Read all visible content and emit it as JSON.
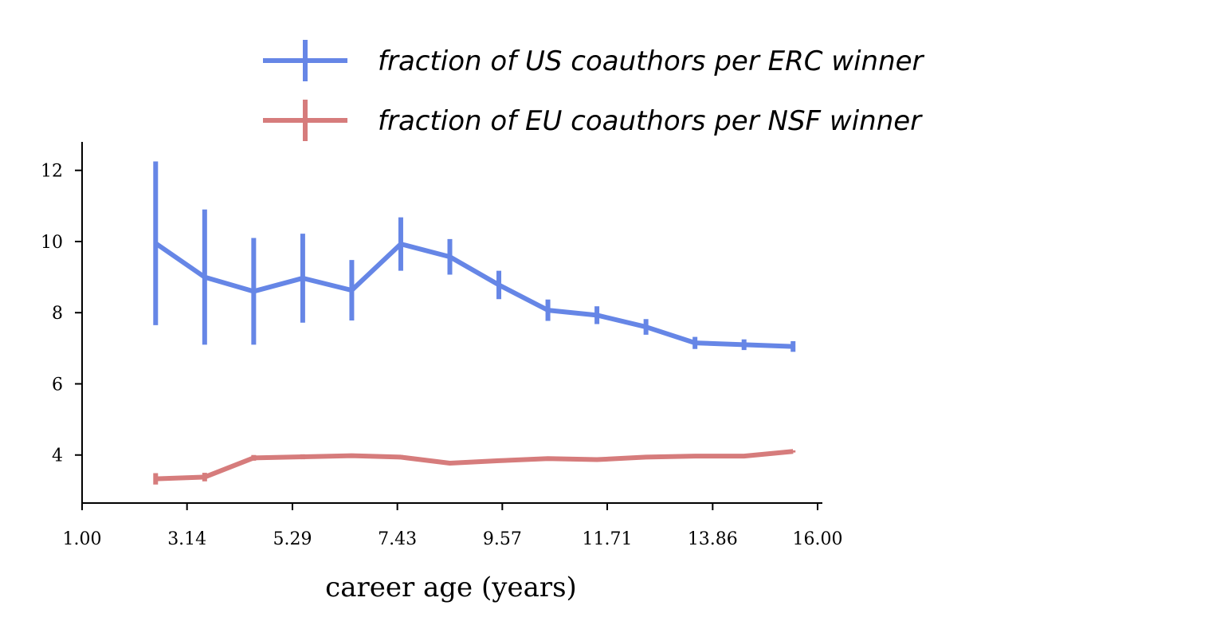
{
  "chart_data": {
    "type": "line",
    "xlabel": "career age (years)",
    "ylabel": "",
    "xlim": [
      1.0,
      16.0
    ],
    "ylim": [
      2.65,
      12.8
    ],
    "x_ticks": [
      "1.00",
      "3.14",
      "5.29",
      "7.43",
      "9.57",
      "11.71",
      "13.86",
      "16.00"
    ],
    "y_ticks": [
      "4",
      "6",
      "8",
      "10",
      "12"
    ],
    "legend_position": "top-right, above the plot",
    "grid": false,
    "series": [
      {
        "name": "fraction of US coauthors per ERC winner",
        "color": "#4169e1",
        "x": [
          2.5,
          3.5,
          4.5,
          5.5,
          6.5,
          7.5,
          8.5,
          9.5,
          10.5,
          11.5,
          12.5,
          13.5,
          14.5,
          15.5
        ],
        "y": [
          9.95,
          9.0,
          8.6,
          8.97,
          8.63,
          9.93,
          9.57,
          8.78,
          8.07,
          7.93,
          7.6,
          7.15,
          7.1,
          7.05
        ],
        "err": [
          2.3,
          1.9,
          1.5,
          1.25,
          0.85,
          0.75,
          0.5,
          0.4,
          0.3,
          0.25,
          0.22,
          0.17,
          0.15,
          0.15
        ]
      },
      {
        "name": "fraction of EU coauthors per NSF winner",
        "color": "#cd5c5c",
        "x": [
          2.5,
          3.5,
          4.5,
          5.5,
          6.5,
          7.5,
          8.5,
          9.5,
          10.5,
          11.5,
          12.5,
          13.5,
          14.5,
          15.5
        ],
        "y": [
          3.33,
          3.38,
          3.92,
          3.95,
          3.98,
          3.94,
          3.77,
          3.84,
          3.9,
          3.87,
          3.94,
          3.97,
          3.97,
          4.1
        ],
        "err": [
          0.16,
          0.12,
          0.08,
          0.07,
          0.06,
          0.06,
          0.05,
          0.04,
          0.04,
          0.04,
          0.03,
          0.03,
          0.03,
          0.03
        ]
      }
    ]
  }
}
